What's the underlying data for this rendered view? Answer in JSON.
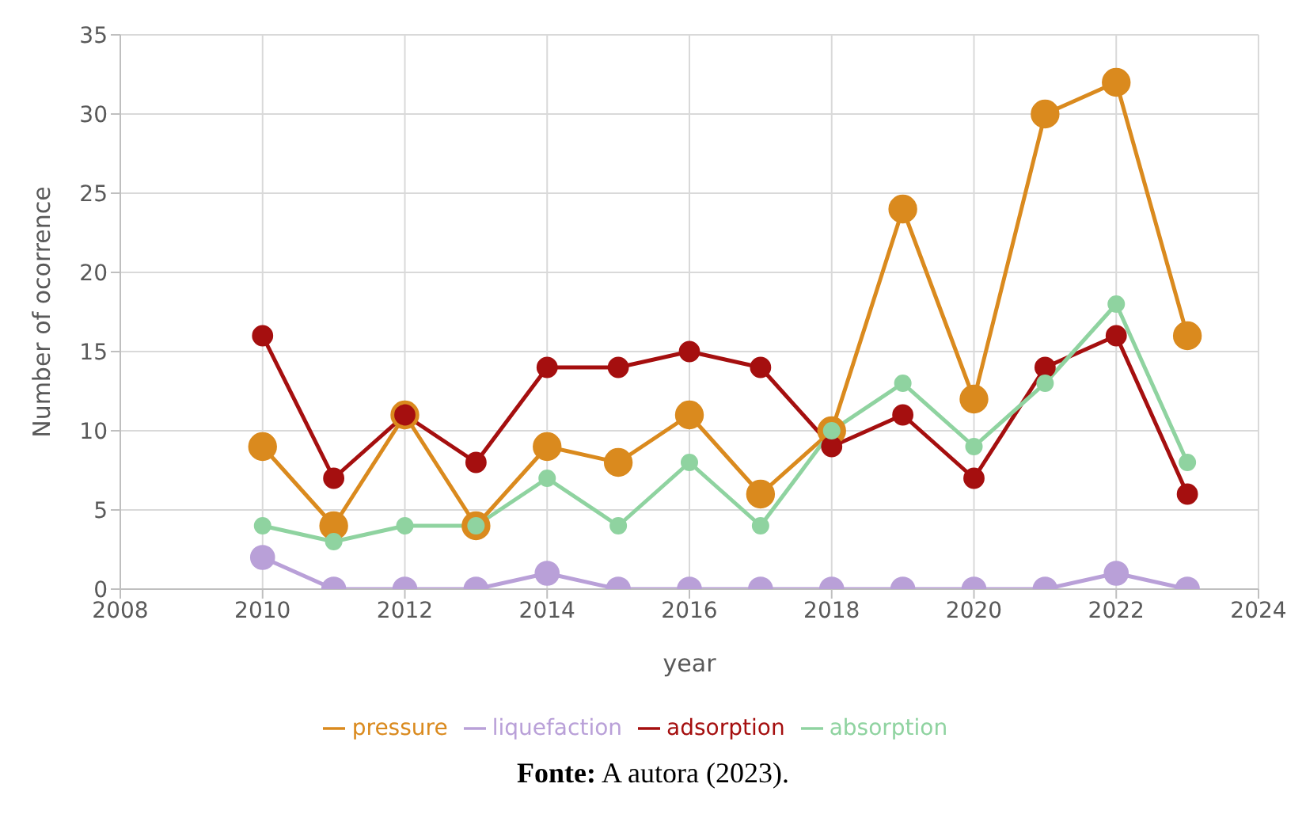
{
  "chart_data": {
    "type": "line",
    "xlabel": "year",
    "ylabel": "Number of ocorrence",
    "x": [
      2010,
      2011,
      2012,
      2013,
      2014,
      2015,
      2016,
      2017,
      2018,
      2019,
      2020,
      2021,
      2022,
      2023
    ],
    "series": [
      {
        "name": "pressure",
        "color": "#da8a1e",
        "values": [
          9,
          4,
          11,
          4,
          9,
          8,
          11,
          6,
          10,
          24,
          12,
          30,
          32,
          16
        ]
      },
      {
        "name": "liquefaction",
        "color": "#b9a0d8",
        "values": [
          2,
          0,
          0,
          0,
          1,
          0,
          0,
          0,
          0,
          0,
          0,
          0,
          1,
          0
        ]
      },
      {
        "name": "adsorption",
        "color": "#a50f0f",
        "values": [
          16,
          7,
          11,
          8,
          14,
          14,
          15,
          14,
          9,
          11,
          7,
          14,
          16,
          6
        ]
      },
      {
        "name": "absorption",
        "color": "#8fd3a0",
        "values": [
          4,
          3,
          4,
          4,
          7,
          4,
          8,
          4,
          10,
          13,
          9,
          13,
          18,
          8
        ]
      }
    ],
    "xlim": [
      2008,
      2024
    ],
    "xticks": [
      2008,
      2010,
      2012,
      2014,
      2016,
      2018,
      2020,
      2022,
      2024
    ],
    "ylim": [
      0,
      35
    ],
    "yticks": [
      0,
      5,
      10,
      15,
      20,
      25,
      30,
      35
    ],
    "grid": true,
    "legend": "bottom",
    "marker": "circle",
    "line_style": "solid",
    "annotations": [
      "Fonte: A autora (2023)."
    ]
  }
}
